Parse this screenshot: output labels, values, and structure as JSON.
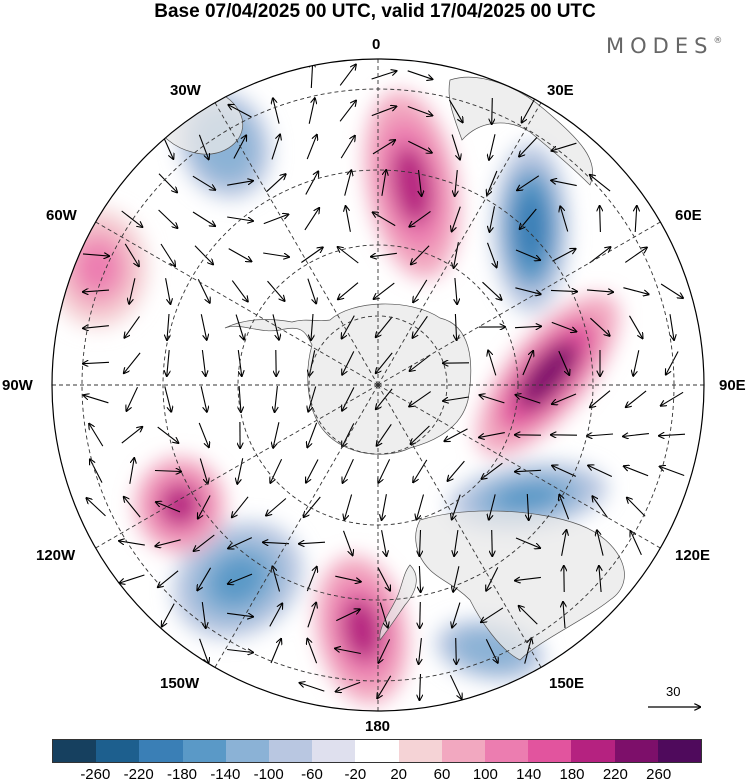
{
  "title": "Base 07/04/2025 00 UTC, valid 17/04/2025 00 UTC",
  "brand": "MODES",
  "brand_mark": "®",
  "longitude_labels": {
    "l0": "0",
    "l30e": "30E",
    "l60e": "60E",
    "l90e": "90E",
    "l120e": "120E",
    "l150e": "150E",
    "l180": "180",
    "l150w": "150W",
    "l120w": "120W",
    "l90w": "90W",
    "l60w": "60W",
    "l30w": "30W"
  },
  "reference_vector": "30",
  "colorbar": {
    "ticks": [
      "-260",
      "-220",
      "-180",
      "-140",
      "-100",
      "-60",
      "-20",
      "20",
      "60",
      "100",
      "140",
      "180",
      "220",
      "260"
    ],
    "colors": [
      "#16405f",
      "#1d5f8e",
      "#3a7fb6",
      "#5a99c7",
      "#8bb2d6",
      "#b9c7e1",
      "#dfe0ee",
      "#ffffff",
      "#f5d3d6",
      "#f2a8c0",
      "#ec7db0",
      "#e2549e",
      "#b52280",
      "#7d0f6a",
      "#4f0a5c"
    ]
  },
  "chart_data": {
    "type": "polar-stereographic map",
    "projection_center": "South Pole",
    "fields": [
      "shaded anomaly",
      "wind vectors"
    ],
    "colorbar_levels": [
      -260,
      -220,
      -180,
      -140,
      -100,
      -60,
      -20,
      20,
      60,
      100,
      140,
      180,
      220,
      260
    ],
    "anomaly_centers": [
      {
        "lon_label": "0",
        "sign": "positive",
        "peak": 180
      },
      {
        "lon_label": "30E",
        "sign": "negative",
        "peak": -220
      },
      {
        "lon_label": "90E",
        "sign": "positive",
        "peak": 220
      },
      {
        "lon_label": "120E",
        "sign": "negative",
        "peak": -180
      },
      {
        "lon_label": "150E",
        "sign": "negative",
        "peak": -140
      },
      {
        "lon_label": "180",
        "sign": "positive",
        "peak": 180
      },
      {
        "lon_label": "150W",
        "sign": "negative",
        "peak": -180
      },
      {
        "lon_label": "120W",
        "sign": "positive",
        "peak": 180
      },
      {
        "lon_label": "60W",
        "sign": "positive",
        "peak": 100
      },
      {
        "lon_label": "30W",
        "sign": "negative",
        "peak": -140
      }
    ]
  }
}
